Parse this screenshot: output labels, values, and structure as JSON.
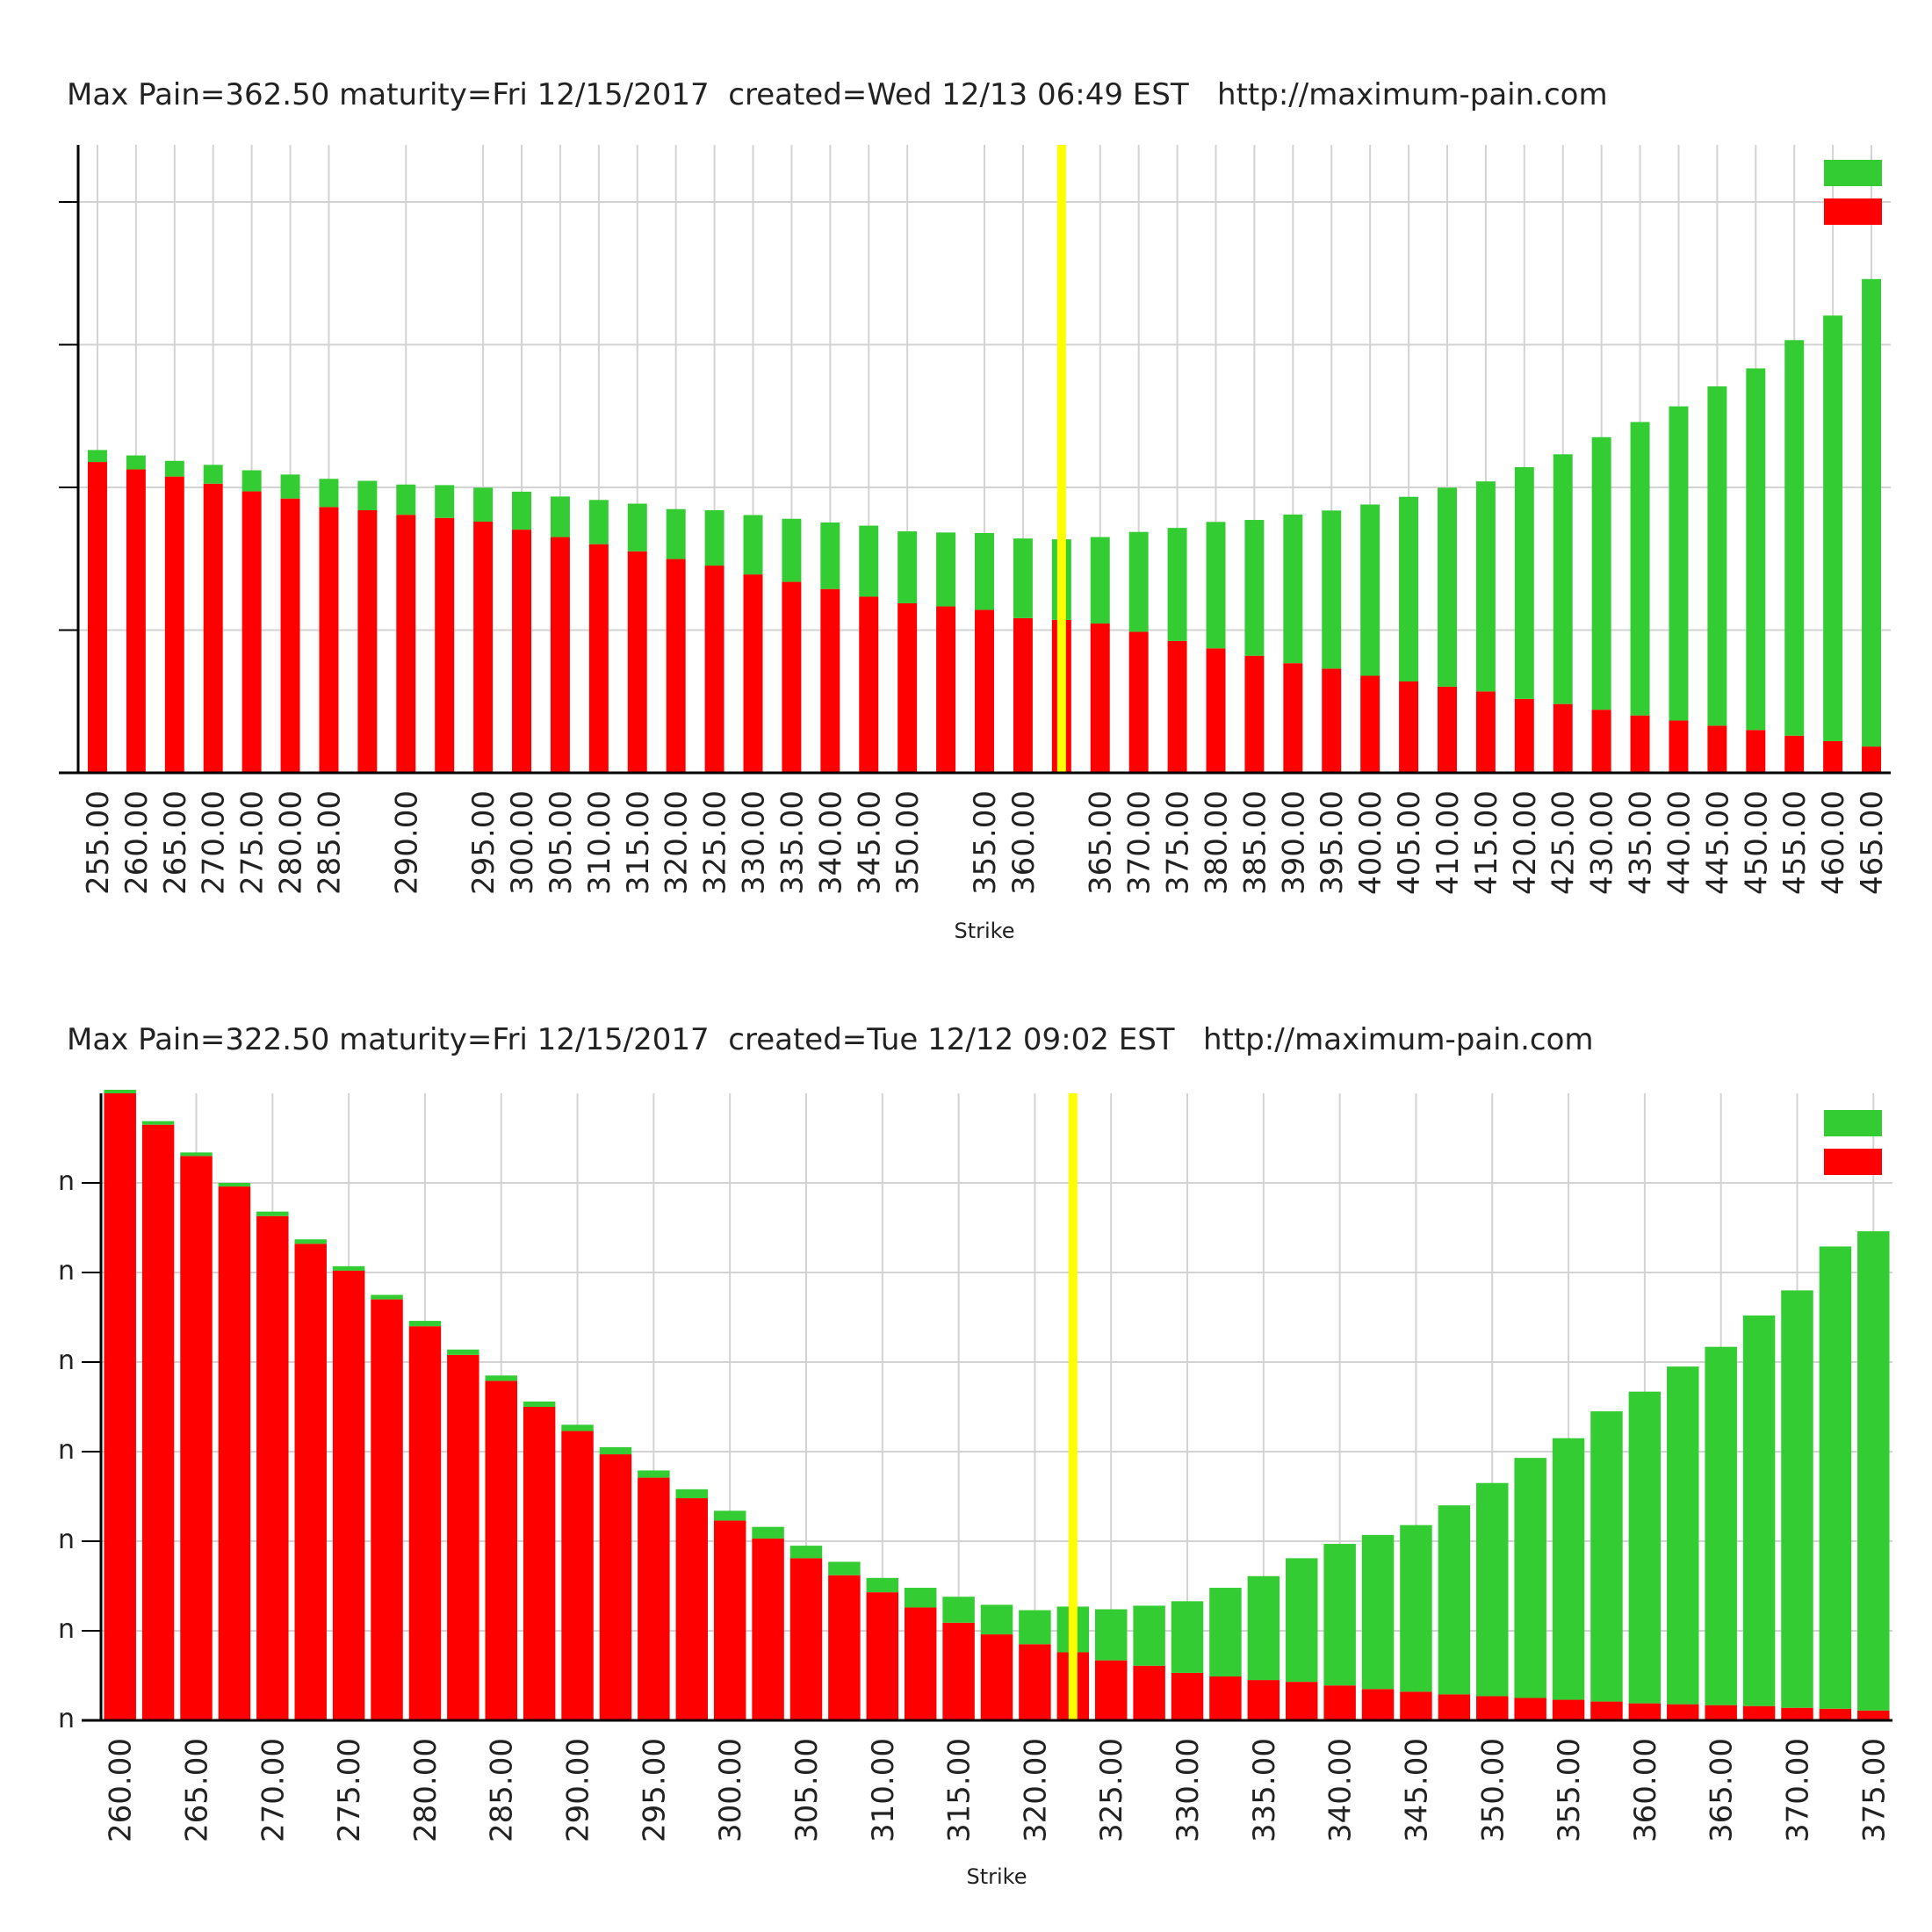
{
  "colors": {
    "puts": "#ff0000",
    "calls": "#33cc33",
    "maxpain": "#ffff00",
    "grid": "#d3d3d3",
    "axis": "#000000"
  },
  "chart_data": [
    {
      "type": "bar",
      "stacked": true,
      "title": "Max Pain=362.50 maturity=Fri 12/15/2017  created=Wed 12/13 06:49 EST   http://maximum-pain.com",
      "xlabel": "Strike",
      "ylabel": "",
      "max_pain": 362.5,
      "ylim": [
        0,
        220
      ],
      "yticks": [
        0,
        50,
        100,
        150,
        200
      ],
      "ytick_labels": [
        "",
        "",
        "",
        "",
        ""
      ],
      "grid": true,
      "legend": "top-right",
      "categories": [
        "255.00",
        "260.00",
        "265.00",
        "270.00",
        "275.00",
        "280.00",
        "285.00",
        "287.50",
        "290.00",
        "292.50",
        "295.00",
        "300.00",
        "305.00",
        "310.00",
        "315.00",
        "320.00",
        "325.00",
        "330.00",
        "335.00",
        "340.00",
        "345.00",
        "350.00",
        "352.50",
        "355.00",
        "360.00",
        "362.50",
        "365.00",
        "370.00",
        "375.00",
        "380.00",
        "385.00",
        "390.00",
        "395.00",
        "400.00",
        "405.00",
        "410.00",
        "415.00",
        "420.00",
        "425.00",
        "430.00",
        "435.00",
        "440.00",
        "445.00",
        "450.00",
        "455.00",
        "460.00",
        "465.00"
      ],
      "tick_labels": [
        "255.00",
        "260.00",
        "265.00",
        "270.00",
        "275.00",
        "280.00",
        "285.00",
        "290.00",
        "295.00",
        "300.00",
        "305.00",
        "310.00",
        "315.00",
        "320.00",
        "325.00",
        "330.00",
        "335.00",
        "340.00",
        "345.00",
        "350.00",
        "355.00",
        "360.00",
        "365.00",
        "370.00",
        "375.00",
        "380.00",
        "385.00",
        "390.00",
        "395.00",
        "400.00",
        "405.00",
        "410.00",
        "415.00",
        "420.00",
        "425.00",
        "430.00",
        "435.00",
        "440.00",
        "445.00",
        "450.00",
        "455.00",
        "460.00",
        "465.00"
      ],
      "series": [
        {
          "values": [
            108.9,
            106.3,
            103.8,
            101.3,
            98.6,
            96.1,
            93.1,
            92.0,
            90.4,
            89.3,
            88.0,
            85.2,
            82.6,
            80.1,
            77.6,
            74.9,
            72.6,
            69.5,
            66.9,
            64.4,
            61.7,
            59.4,
            58.3,
            57.1,
            54.2,
            53.6,
            52.3,
            49.4,
            46.2,
            43.6,
            41.0,
            38.4,
            36.5,
            34.0,
            32.0,
            30.2,
            28.5,
            25.9,
            24.1,
            22.1,
            20.1,
            18.3,
            16.5,
            15.0,
            13.0,
            11.1,
            9.2
          ]
        },
        {
          "values": [
            4.2,
            4.9,
            5.5,
            6.6,
            7.4,
            8.4,
            9.9,
            10.3,
            10.6,
            11.5,
            11.9,
            13.3,
            14.2,
            15.5,
            16.7,
            17.5,
            19.4,
            20.8,
            22.1,
            23.3,
            24.9,
            25.2,
            25.9,
            26.9,
            27.9,
            28.2,
            30.3,
            35.0,
            39.6,
            44.3,
            47.6,
            52.1,
            55.4,
            60.0,
            64.7,
            69.7,
            73.6,
            81.2,
            87.5,
            95.5,
            102.8,
            110.1,
            118.9,
            126.7,
            138.6,
            149.1,
            163.8
          ]
        }
      ]
    },
    {
      "type": "bar",
      "stacked": true,
      "title": "Max Pain=322.50 maturity=Fri 12/15/2017  created=Tue 12/12 09:02 EST   http://maximum-pain.com",
      "xlabel": "Strike",
      "ylabel": "",
      "max_pain": 322.5,
      "ylim": [
        0,
        700
      ],
      "yticks": [
        0,
        100,
        200,
        300,
        400,
        500,
        600
      ],
      "ytick_labels": [
        "n",
        "n",
        "n",
        "n",
        "n",
        "n",
        "n"
      ],
      "grid": true,
      "legend": "top-right",
      "categories": [
        "260.00",
        "262.50",
        "265.00",
        "267.50",
        "270.00",
        "272.50",
        "275.00",
        "277.50",
        "280.00",
        "282.50",
        "285.00",
        "287.50",
        "290.00",
        "292.50",
        "295.00",
        "297.50",
        "300.00",
        "302.50",
        "305.00",
        "307.50",
        "310.00",
        "312.50",
        "315.00",
        "317.50",
        "320.00",
        "322.50",
        "325.00",
        "327.50",
        "330.00",
        "332.50",
        "335.00",
        "337.50",
        "340.00",
        "342.50",
        "345.00",
        "347.50",
        "350.00",
        "352.50",
        "355.00",
        "357.50",
        "360.00",
        "362.50",
        "365.00",
        "367.50",
        "370.00",
        "372.50",
        "375.00"
      ],
      "tick_labels": [
        "260.00",
        "265.00",
        "270.00",
        "275.00",
        "280.00",
        "285.00",
        "290.00",
        "295.00",
        "300.00",
        "305.00",
        "310.00",
        "315.00",
        "320.00",
        "325.00",
        "330.00",
        "335.00",
        "340.00",
        "345.00",
        "350.00",
        "355.00",
        "360.00",
        "365.00",
        "370.00",
        "375.00"
      ],
      "series": [
        {
          "values": [
            700,
            665,
            630,
            596,
            563,
            532,
            502,
            470,
            440,
            408,
            379,
            350,
            323,
            297,
            271,
            248,
            223,
            203,
            181,
            162,
            143,
            126,
            109,
            96,
            85,
            76,
            67,
            61,
            53,
            49,
            45,
            43,
            39,
            35,
            32,
            29,
            27,
            25,
            23,
            21,
            19,
            18,
            17,
            16,
            14,
            13,
            11
          ]
        },
        {
          "values": [
            4,
            4,
            4,
            4,
            5,
            5,
            5,
            5,
            6,
            6,
            6,
            6,
            7,
            8,
            8,
            10,
            11,
            13,
            14,
            15,
            16,
            22,
            29,
            33,
            38,
            51,
            57,
            67,
            80,
            99,
            116,
            138,
            158,
            172,
            186,
            211,
            238,
            268,
            292,
            324,
            348,
            377,
            400,
            436,
            466,
            516,
            535
          ]
        }
      ]
    }
  ]
}
